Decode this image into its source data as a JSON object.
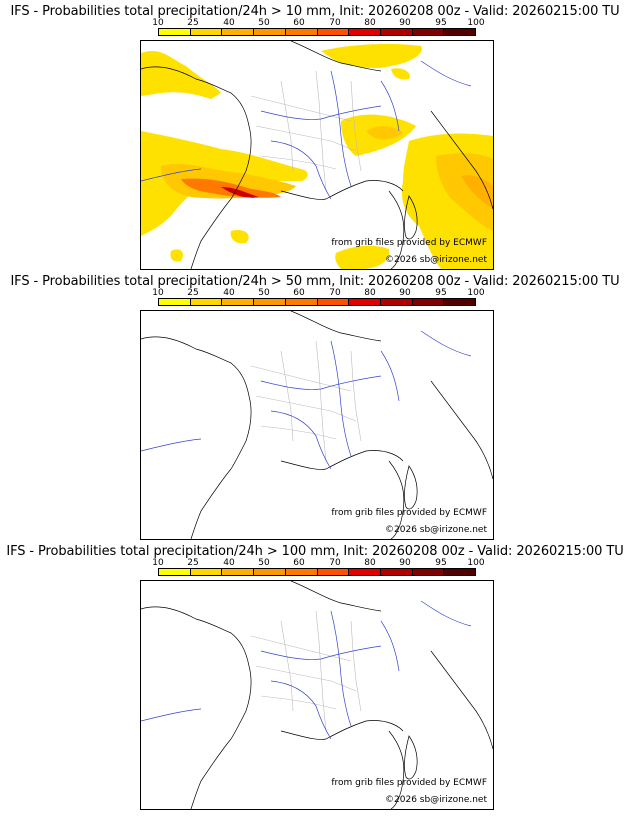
{
  "colorbar": {
    "ticks": [
      "10",
      "25",
      "40",
      "50",
      "60",
      "70",
      "80",
      "90",
      "95",
      "100"
    ],
    "colors": [
      "#ffff00",
      "#ffd700",
      "#ffb000",
      "#ff9800",
      "#ff7800",
      "#ff5000",
      "#e00000",
      "#b00000",
      "#800000",
      "#500000"
    ]
  },
  "panels": [
    {
      "title": "IFS - Probabilities total precipitation/24h > 10 mm, Init: 20260208 00z - Valid: 20260215:00 TU",
      "credit": "from grib files provided by ECMWF",
      "copyright": "©2026 sb@irizone.net"
    },
    {
      "title": "IFS - Probabilities total precipitation/24h > 50 mm, Init: 20260208 00z - Valid: 20260215:00 TU",
      "credit": "from grib files provided by ECMWF",
      "copyright": "©2026 sb@irizone.net"
    },
    {
      "title": "IFS - Probabilities total precipitation/24h > 100 mm, Init: 20260208 00z - Valid: 20260215:00 TU",
      "credit": "from grib files provided by ECMWF",
      "copyright": "©2026 sb@irizone.net"
    }
  ]
}
